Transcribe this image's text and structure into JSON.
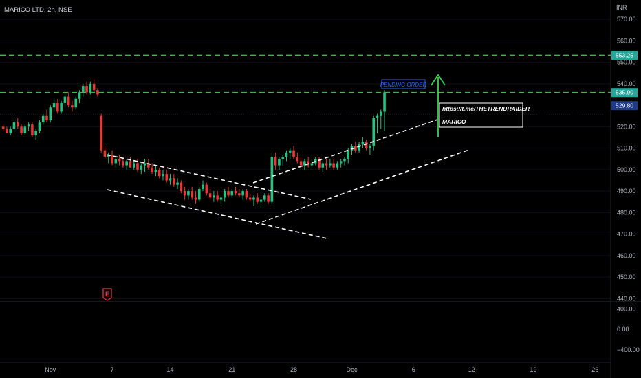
{
  "header": {
    "symbol_title": "MARICO LTD, 2h, NSE"
  },
  "price_axis": {
    "currency": "INR",
    "ticks": [
      "570.00",
      "560.00",
      "550.00",
      "540.00",
      "520.00",
      "510.00",
      "500.00",
      "490.00",
      "480.00",
      "470.00",
      "460.00",
      "450.00",
      "440.00"
    ],
    "tick_values": [
      570,
      560,
      550,
      540,
      520,
      510,
      500,
      490,
      480,
      470,
      460,
      450,
      440
    ],
    "range": [
      438.5,
      579
    ]
  },
  "indicator_axis": {
    "ticks": [
      "400.00",
      "0.00",
      "−400.00"
    ],
    "tick_values": [
      400,
      0,
      -400
    ],
    "range": [
      -640,
      525
    ]
  },
  "time_axis": {
    "labels": [
      "Nov",
      "7",
      "14",
      "21",
      "28",
      "Dec",
      "6",
      "12",
      "19",
      "26"
    ],
    "label_bars": [
      1,
      18,
      34,
      51,
      68,
      84,
      101,
      117,
      134,
      151
    ]
  },
  "tags": {
    "target": {
      "label": "553.25",
      "value": 553.25,
      "color": "#26a69a"
    },
    "entry": {
      "label": "535.90",
      "value": 535.9,
      "color": "#26a69a"
    },
    "last": {
      "label": "529.80",
      "value": 529.8,
      "color": "#1e3a8a"
    }
  },
  "annotations": {
    "pending_order": "PENDING ORDER",
    "note_link": "https://t.me/THETRENDRAIDER",
    "note_symbol": "MARICO",
    "earnings_marker": "E"
  },
  "levels": {
    "target": 553.25,
    "entry": 535.9
  },
  "colors": {
    "up": "#26c281",
    "down": "#e53935",
    "level": "#4caf50",
    "arrow": "#39d353",
    "background": "#000000"
  },
  "chart_data": {
    "type": "candlestick",
    "title": "MARICO LTD, 2h, NSE",
    "ylabel": "INR",
    "ylim": [
      438.5,
      579
    ],
    "x_start_bar": -12,
    "candles": [
      [
        520,
        521,
        518,
        519
      ],
      [
        519,
        520,
        517,
        517
      ],
      [
        517,
        520,
        516,
        519
      ],
      [
        519,
        523,
        518,
        522
      ],
      [
        522,
        524,
        519,
        520
      ],
      [
        520,
        521,
        516,
        517
      ],
      [
        517,
        521,
        516,
        520
      ],
      [
        520,
        522,
        518,
        521
      ],
      [
        521,
        522,
        515,
        516
      ],
      [
        516,
        519,
        514,
        518
      ],
      [
        518,
        523,
        517,
        522
      ],
      [
        522,
        526,
        521,
        525
      ],
      [
        525,
        528,
        522,
        523
      ],
      [
        523,
        530,
        522,
        529
      ],
      [
        529,
        533,
        527,
        531
      ],
      [
        531,
        533,
        526,
        527
      ],
      [
        527,
        532,
        526,
        531
      ],
      [
        531,
        536,
        529,
        534
      ],
      [
        534,
        536,
        529,
        530
      ],
      [
        530,
        532,
        527,
        529
      ],
      [
        529,
        534,
        528,
        533
      ],
      [
        533,
        537,
        531,
        536
      ],
      [
        536,
        540,
        534,
        539
      ],
      [
        539,
        541,
        535,
        536
      ],
      [
        536,
        541,
        535,
        540
      ],
      [
        540,
        542,
        536,
        537
      ],
      [
        537,
        538,
        534,
        535
      ],
      [
        525,
        526,
        508,
        509
      ],
      [
        509,
        511,
        505,
        506
      ],
      [
        506,
        508,
        503,
        507
      ],
      [
        507,
        509,
        502,
        503
      ],
      [
        503,
        506,
        501,
        505
      ],
      [
        505,
        507,
        502,
        504
      ],
      [
        504,
        506,
        501,
        502
      ],
      [
        502,
        505,
        500,
        504
      ],
      [
        504,
        506,
        501,
        501
      ],
      [
        501,
        504,
        500,
        503
      ],
      [
        503,
        505,
        499,
        500
      ],
      [
        500,
        503,
        498,
        502
      ],
      [
        502,
        505,
        499,
        503
      ],
      [
        503,
        505,
        500,
        501
      ],
      [
        501,
        503,
        498,
        499
      ],
      [
        499,
        502,
        497,
        500
      ],
      [
        500,
        501,
        496,
        497
      ],
      [
        497,
        500,
        495,
        498
      ],
      [
        498,
        500,
        494,
        495
      ],
      [
        495,
        498,
        493,
        496
      ],
      [
        496,
        498,
        492,
        493
      ],
      [
        493,
        496,
        491,
        494
      ],
      [
        494,
        495,
        489,
        490
      ],
      [
        490,
        492,
        486,
        488
      ],
      [
        488,
        491,
        486,
        490
      ],
      [
        490,
        492,
        486,
        487
      ],
      [
        487,
        490,
        484,
        486
      ],
      [
        486,
        492,
        485,
        491
      ],
      [
        491,
        495,
        490,
        493
      ],
      [
        493,
        494,
        488,
        489
      ],
      [
        489,
        491,
        486,
        487
      ],
      [
        487,
        490,
        485,
        488
      ],
      [
        488,
        490,
        485,
        486
      ],
      [
        486,
        488,
        484,
        487
      ],
      [
        487,
        491,
        485,
        490
      ],
      [
        490,
        492,
        487,
        488
      ],
      [
        488,
        491,
        487,
        490
      ],
      [
        490,
        492,
        488,
        489
      ],
      [
        489,
        491,
        487,
        488
      ],
      [
        488,
        491,
        486,
        490
      ],
      [
        490,
        491,
        486,
        487
      ],
      [
        487,
        489,
        485,
        486
      ],
      [
        486,
        488,
        483,
        487
      ],
      [
        487,
        489,
        484,
        485
      ],
      [
        485,
        487,
        482,
        486
      ],
      [
        486,
        489,
        485,
        488
      ],
      [
        488,
        489,
        484,
        485
      ],
      [
        485,
        508,
        484,
        506
      ],
      [
        506,
        508,
        500,
        502
      ],
      [
        502,
        506,
        500,
        505
      ],
      [
        505,
        507,
        502,
        506
      ],
      [
        506,
        509,
        504,
        508
      ],
      [
        508,
        510,
        505,
        509
      ],
      [
        509,
        511,
        505,
        506
      ],
      [
        506,
        508,
        503,
        504
      ],
      [
        504,
        506,
        501,
        502
      ],
      [
        502,
        505,
        500,
        504
      ],
      [
        504,
        506,
        501,
        502
      ],
      [
        502,
        505,
        500,
        503
      ],
      [
        503,
        506,
        502,
        505
      ],
      [
        505,
        506,
        500,
        501
      ],
      [
        501,
        504,
        499,
        503
      ],
      [
        503,
        505,
        500,
        502
      ],
      [
        502,
        505,
        501,
        503
      ],
      [
        503,
        505,
        500,
        501
      ],
      [
        501,
        504,
        500,
        503
      ],
      [
        503,
        505,
        501,
        504
      ],
      [
        504,
        506,
        502,
        505
      ],
      [
        505,
        510,
        503,
        509
      ],
      [
        509,
        512,
        507,
        511
      ],
      [
        511,
        513,
        508,
        509
      ],
      [
        509,
        513,
        508,
        512
      ],
      [
        512,
        515,
        510,
        513
      ],
      [
        513,
        514,
        509,
        510
      ],
      [
        510,
        512,
        507,
        511
      ],
      [
        511,
        525,
        509,
        524
      ],
      [
        524,
        526,
        517,
        525
      ],
      [
        525,
        528,
        519,
        527
      ],
      [
        527,
        537,
        518,
        536
      ]
    ]
  }
}
